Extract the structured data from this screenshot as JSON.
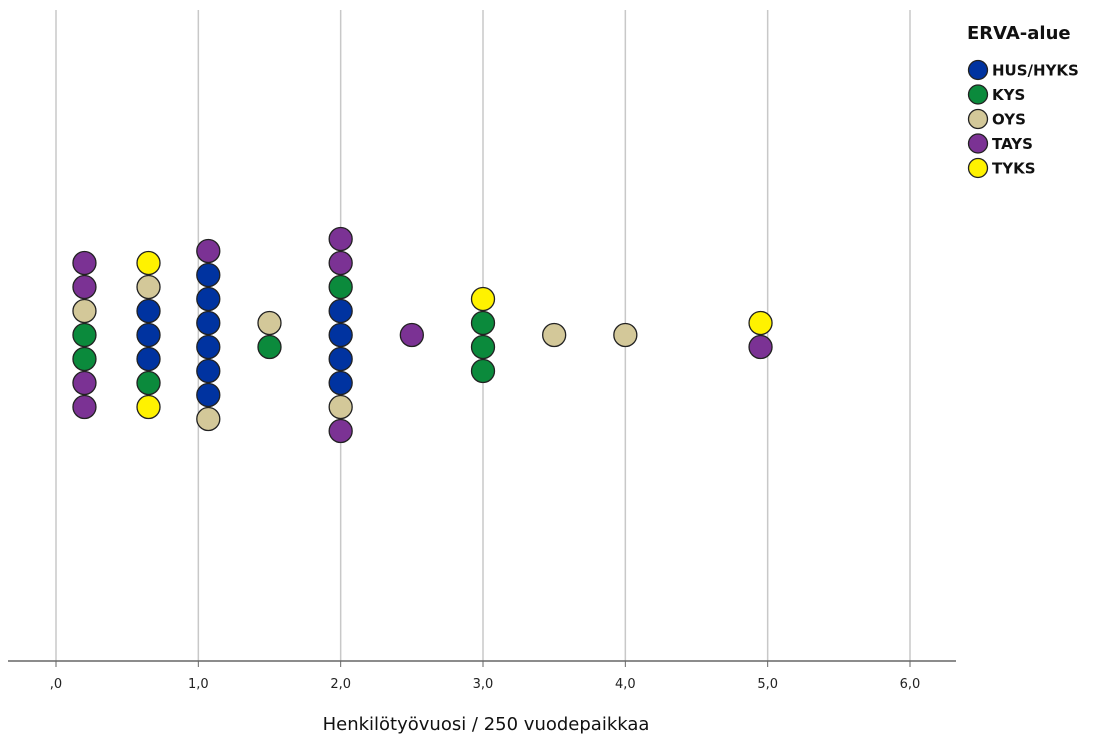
{
  "chart_data": {
    "type": "scatter",
    "subtype": "dot-plot",
    "xlabel": "Henkilötyövuosi / 250 vuodepaikkaa",
    "xlim": [
      0,
      6
    ],
    "xticks": [
      0,
      1,
      2,
      3,
      4,
      5,
      6
    ],
    "xtick_labels": [
      ",0",
      "1,0",
      "2,0",
      "3,0",
      "4,0",
      "5,0",
      "6,0"
    ],
    "grid": "vertical",
    "legend": {
      "title": "ERVA-alue",
      "position": "top-right",
      "items": [
        {
          "label": "HUS/HYKS",
          "color": "#0033A0"
        },
        {
          "label": "KYS",
          "color": "#0B8A3C"
        },
        {
          "label": "OYS",
          "color": "#D3C899"
        },
        {
          "label": "TAYS",
          "color": "#7B3294"
        },
        {
          "label": "TYKS",
          "color": "#FFF200"
        }
      ]
    },
    "stacks": [
      {
        "x": 0.2,
        "points": [
          "TAYS",
          "TAYS",
          "OYS",
          "KYS",
          "KYS",
          "TAYS",
          "TAYS"
        ]
      },
      {
        "x": 0.65,
        "points": [
          "TYKS",
          "OYS",
          "HUS/HYKS",
          "HUS/HYKS",
          "HUS/HYKS",
          "KYS",
          "TYKS"
        ]
      },
      {
        "x": 1.07,
        "points": [
          "TAYS",
          "HUS/HYKS",
          "HUS/HYKS",
          "HUS/HYKS",
          "HUS/HYKS",
          "HUS/HYKS",
          "HUS/HYKS",
          "OYS"
        ]
      },
      {
        "x": 1.5,
        "points": [
          "OYS",
          "KYS"
        ]
      },
      {
        "x": 2.0,
        "points": [
          "TAYS",
          "TAYS",
          "KYS",
          "HUS/HYKS",
          "HUS/HYKS",
          "HUS/HYKS",
          "HUS/HYKS",
          "OYS",
          "TAYS"
        ]
      },
      {
        "x": 2.5,
        "points": [
          "TAYS"
        ]
      },
      {
        "x": 3.0,
        "points": [
          "TYKS",
          "KYS",
          "KYS",
          "KYS"
        ]
      },
      {
        "x": 3.5,
        "points": [
          "OYS"
        ]
      },
      {
        "x": 4.0,
        "points": [
          "OYS"
        ]
      },
      {
        "x": 4.95,
        "points": [
          "TYKS",
          "TAYS"
        ]
      }
    ]
  }
}
